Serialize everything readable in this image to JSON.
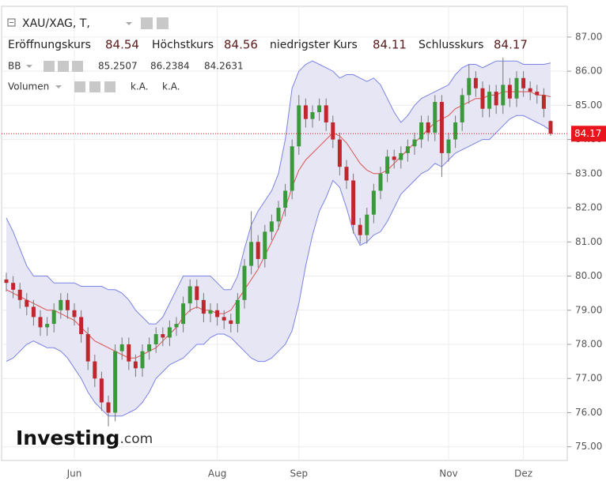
{
  "chart_data": {
    "type": "candlestick",
    "symbol": "XAU/XAG, T,",
    "ohlc_labels": [
      "Eröffnungskurs",
      "Höchstkurs",
      "niedrigster Kurs",
      "Schlusskurs"
    ],
    "categories": [
      null,
      null,
      null,
      null,
      null,
      null,
      null,
      null,
      null,
      null,
      "Jun",
      null,
      null,
      null,
      null,
      null,
      null,
      null,
      null,
      null,
      null,
      null,
      null,
      null,
      null,
      null,
      null,
      null,
      null,
      null,
      null,
      "Aug",
      null,
      null,
      null,
      null,
      null,
      null,
      null,
      null,
      null,
      null,
      null,
      "Sep",
      null,
      null,
      null,
      null,
      null,
      null,
      null,
      null,
      null,
      null,
      null,
      null,
      null,
      null,
      null,
      null,
      null,
      null,
      null,
      null,
      null,
      "Nov",
      null,
      null,
      null,
      null,
      null,
      null,
      null,
      null,
      null,
      null,
      "Dez",
      null,
      null,
      null,
      null
    ],
    "open": [
      79.9,
      79.8,
      79.6,
      79.3,
      79.1,
      78.8,
      78.5,
      78.6,
      79.0,
      79.3,
      79.0,
      78.8,
      78.3,
      77.5,
      77.0,
      76.3,
      76.0,
      77.8,
      78.0,
      77.5,
      77.3,
      77.8,
      78.0,
      78.3,
      78.2,
      78.5,
      78.6,
      79.2,
      79.7,
      79.3,
      78.9,
      79.0,
      78.8,
      78.7,
      78.6,
      79.3,
      80.3,
      81.0,
      80.5,
      81.3,
      81.6,
      82.0,
      82.5,
      83.8,
      85.0,
      84.6,
      84.8,
      85.0,
      84.5,
      84.0,
      83.2,
      82.8,
      81.5,
      81.2,
      81.8,
      82.5,
      83.0,
      83.5,
      83.4,
      83.6,
      83.8,
      84.0,
      84.5,
      84.2,
      85.1,
      83.6,
      84.0,
      84.5,
      85.3,
      85.8,
      85.5,
      84.9,
      85.4,
      85.0,
      85.6,
      85.2,
      85.8,
      85.5,
      85.4,
      85.3,
      84.54
    ],
    "high": [
      80.1,
      80.0,
      79.8,
      79.5,
      79.3,
      79.0,
      78.8,
      79.2,
      79.5,
      79.5,
      79.2,
      79.0,
      78.5,
      77.7,
      77.2,
      76.5,
      78.0,
      78.2,
      78.2,
      77.7,
      78.0,
      78.2,
      78.5,
      78.5,
      78.7,
      78.8,
      79.4,
      79.9,
      79.9,
      79.5,
      79.2,
      79.2,
      79.0,
      78.9,
      79.5,
      80.5,
      81.9,
      81.2,
      81.5,
      81.8,
      82.2,
      82.7,
      84.0,
      85.3,
      85.2,
      85.0,
      85.2,
      85.2,
      84.7,
      84.2,
      83.4,
      83.0,
      81.7,
      82.0,
      82.7,
      83.2,
      83.7,
      83.7,
      83.8,
      84.0,
      84.2,
      84.7,
      84.7,
      85.3,
      85.3,
      84.2,
      84.7,
      85.5,
      86.2,
      86.0,
      85.7,
      85.6,
      85.6,
      86.4,
      85.8,
      86.0,
      86.0,
      85.7,
      85.6,
      85.5,
      84.56
    ],
    "low": [
      79.55,
      79.35,
      79.05,
      78.85,
      78.55,
      78.25,
      78.25,
      78.35,
      78.75,
      78.75,
      78.55,
      78.05,
      77.25,
      76.75,
      76.05,
      75.6,
      75.75,
      77.55,
      77.25,
      77.05,
      77.05,
      77.55,
      77.75,
      77.95,
      77.95,
      78.25,
      78.35,
      78.95,
      79.05,
      78.65,
      78.65,
      78.55,
      78.45,
      78.35,
      78.35,
      79.05,
      80.05,
      80.25,
      80.25,
      81.05,
      81.35,
      81.75,
      82.25,
      83.55,
      84.35,
      84.35,
      84.55,
      84.25,
      83.75,
      82.95,
      82.55,
      81.25,
      80.95,
      80.95,
      81.55,
      82.25,
      82.75,
      83.15,
      83.15,
      83.35,
      83.55,
      83.75,
      83.95,
      83.95,
      82.9,
      83.35,
      83.75,
      84.25,
      85.05,
      85.25,
      84.65,
      84.65,
      84.75,
      84.75,
      84.95,
      84.95,
      85.25,
      85.15,
      85.05,
      84.65,
      84.11
    ],
    "close": [
      79.8,
      79.6,
      79.3,
      79.1,
      78.8,
      78.5,
      78.6,
      79.0,
      79.3,
      79.0,
      78.8,
      78.3,
      77.5,
      77.0,
      76.3,
      76.0,
      77.8,
      78.0,
      77.5,
      77.3,
      77.8,
      78.0,
      78.3,
      78.2,
      78.5,
      78.6,
      79.2,
      79.7,
      79.3,
      78.9,
      79.0,
      78.8,
      78.7,
      78.6,
      79.3,
      80.3,
      81.0,
      80.5,
      81.3,
      81.6,
      82.0,
      82.5,
      83.8,
      85.0,
      84.6,
      84.8,
      85.0,
      84.5,
      84.0,
      83.2,
      82.8,
      81.5,
      81.2,
      81.8,
      82.5,
      83.0,
      83.5,
      83.4,
      83.6,
      83.8,
      84.0,
      84.5,
      84.2,
      85.1,
      83.6,
      84.0,
      84.5,
      85.3,
      85.8,
      85.5,
      84.9,
      85.4,
      85.0,
      85.6,
      85.2,
      85.8,
      85.5,
      85.4,
      85.3,
      84.9,
      84.17
    ],
    "up_color": "#3a9a3a",
    "down_color": "#c0272d",
    "bollinger": {
      "name": "BB",
      "fill": "#e6e6f5",
      "middle": {
        "color": "#e05050",
        "text_color": "#e00000",
        "values": [
          79.6,
          79.5,
          79.4,
          79.3,
          79.2,
          79.1,
          79.0,
          79.0,
          78.9,
          78.8,
          78.7,
          78.5,
          78.3,
          78.1,
          78.0,
          77.9,
          77.8,
          77.7,
          77.6,
          77.6,
          77.7,
          77.8,
          77.9,
          78.1,
          78.3,
          78.5,
          78.8,
          79.0,
          79.1,
          79.0,
          79.0,
          78.9,
          78.9,
          79.0,
          79.3,
          79.6,
          79.9,
          80.2,
          80.6,
          81.0,
          81.4,
          82.0,
          82.6,
          83.1,
          83.4,
          83.6,
          83.8,
          84.0,
          84.2,
          84.1,
          83.9,
          83.6,
          83.3,
          83.1,
          83.0,
          83.0,
          83.1,
          83.3,
          83.5,
          83.7,
          83.9,
          84.1,
          84.3,
          84.5,
          84.6,
          84.7,
          84.9,
          85.0,
          85.1,
          85.2,
          85.2,
          85.3,
          85.3,
          85.4,
          85.4,
          85.4,
          85.4,
          85.4,
          85.3,
          85.3,
          85.2507
        ]
      },
      "upper": {
        "color": "#7b82e6",
        "text_color": "#1a1acc",
        "values": [
          81.7,
          81.3,
          80.8,
          80.3,
          80.0,
          80.0,
          80.0,
          79.8,
          79.8,
          79.8,
          79.8,
          79.7,
          79.7,
          79.7,
          79.7,
          79.6,
          79.6,
          79.5,
          79.3,
          79.0,
          78.8,
          78.6,
          78.6,
          78.8,
          79.2,
          79.6,
          80.0,
          80.0,
          80.0,
          80.0,
          80.0,
          79.8,
          79.6,
          79.6,
          80.0,
          80.8,
          81.5,
          81.9,
          82.2,
          82.5,
          83.0,
          84.0,
          85.5,
          86.0,
          86.2,
          86.3,
          86.2,
          86.1,
          86.0,
          85.8,
          85.9,
          85.9,
          85.8,
          85.7,
          85.8,
          85.6,
          85.2,
          84.8,
          84.5,
          84.7,
          85.0,
          85.2,
          85.3,
          85.4,
          85.5,
          85.6,
          85.9,
          86.1,
          86.2,
          86.2,
          86.1,
          86.2,
          86.3,
          86.3,
          86.3,
          86.3,
          86.2,
          86.2,
          86.2,
          86.2,
          86.2384
        ]
      },
      "lower": {
        "color": "#7b82e6",
        "text_color": "#1a1acc",
        "values": [
          77.5,
          77.6,
          77.8,
          78.0,
          78.1,
          78.0,
          77.9,
          77.9,
          77.8,
          77.6,
          77.3,
          77.0,
          76.6,
          76.3,
          76.1,
          75.9,
          75.9,
          75.9,
          76.0,
          76.1,
          76.3,
          76.6,
          77.0,
          77.2,
          77.4,
          77.5,
          77.6,
          77.8,
          78.0,
          78.0,
          78.2,
          78.3,
          78.3,
          78.2,
          78.0,
          77.8,
          77.6,
          77.5,
          77.5,
          77.6,
          77.8,
          78.0,
          78.4,
          79.2,
          80.3,
          81.2,
          81.9,
          82.3,
          82.8,
          82.6,
          82.0,
          81.3,
          80.9,
          81.0,
          81.2,
          81.3,
          81.6,
          82.0,
          82.4,
          82.6,
          82.8,
          83.0,
          83.1,
          83.3,
          83.2,
          83.4,
          83.6,
          83.7,
          83.8,
          83.9,
          84.0,
          84.0,
          84.2,
          84.4,
          84.6,
          84.7,
          84.7,
          84.6,
          84.5,
          84.4,
          84.2631
        ]
      }
    },
    "volume": {
      "name": "Volumen",
      "values_text": [
        "k.A.",
        "k.A."
      ]
    },
    "last_price_color": "#e8161c",
    "ylim": [
      74.6,
      87.9
    ],
    "yticks": [
      {
        "value": 75,
        "label": "75.00"
      },
      {
        "value": 76,
        "label": "76.00"
      },
      {
        "value": 77,
        "label": "77.00"
      },
      {
        "value": 78,
        "label": "78.00"
      },
      {
        "value": 79,
        "label": "79.00"
      },
      {
        "value": 80,
        "label": "80.00"
      },
      {
        "value": 81,
        "label": "81.00"
      },
      {
        "value": 82,
        "label": "82.00"
      },
      {
        "value": 83,
        "label": "83.00"
      },
      {
        "value": 84,
        "label": "84.00"
      },
      {
        "value": 85,
        "label": "85.00"
      },
      {
        "value": 86,
        "label": "86.00"
      },
      {
        "value": 87,
        "label": "87.00"
      }
    ],
    "grid": true,
    "watermark": "Investing",
    "watermark_suffix": ".com"
  }
}
